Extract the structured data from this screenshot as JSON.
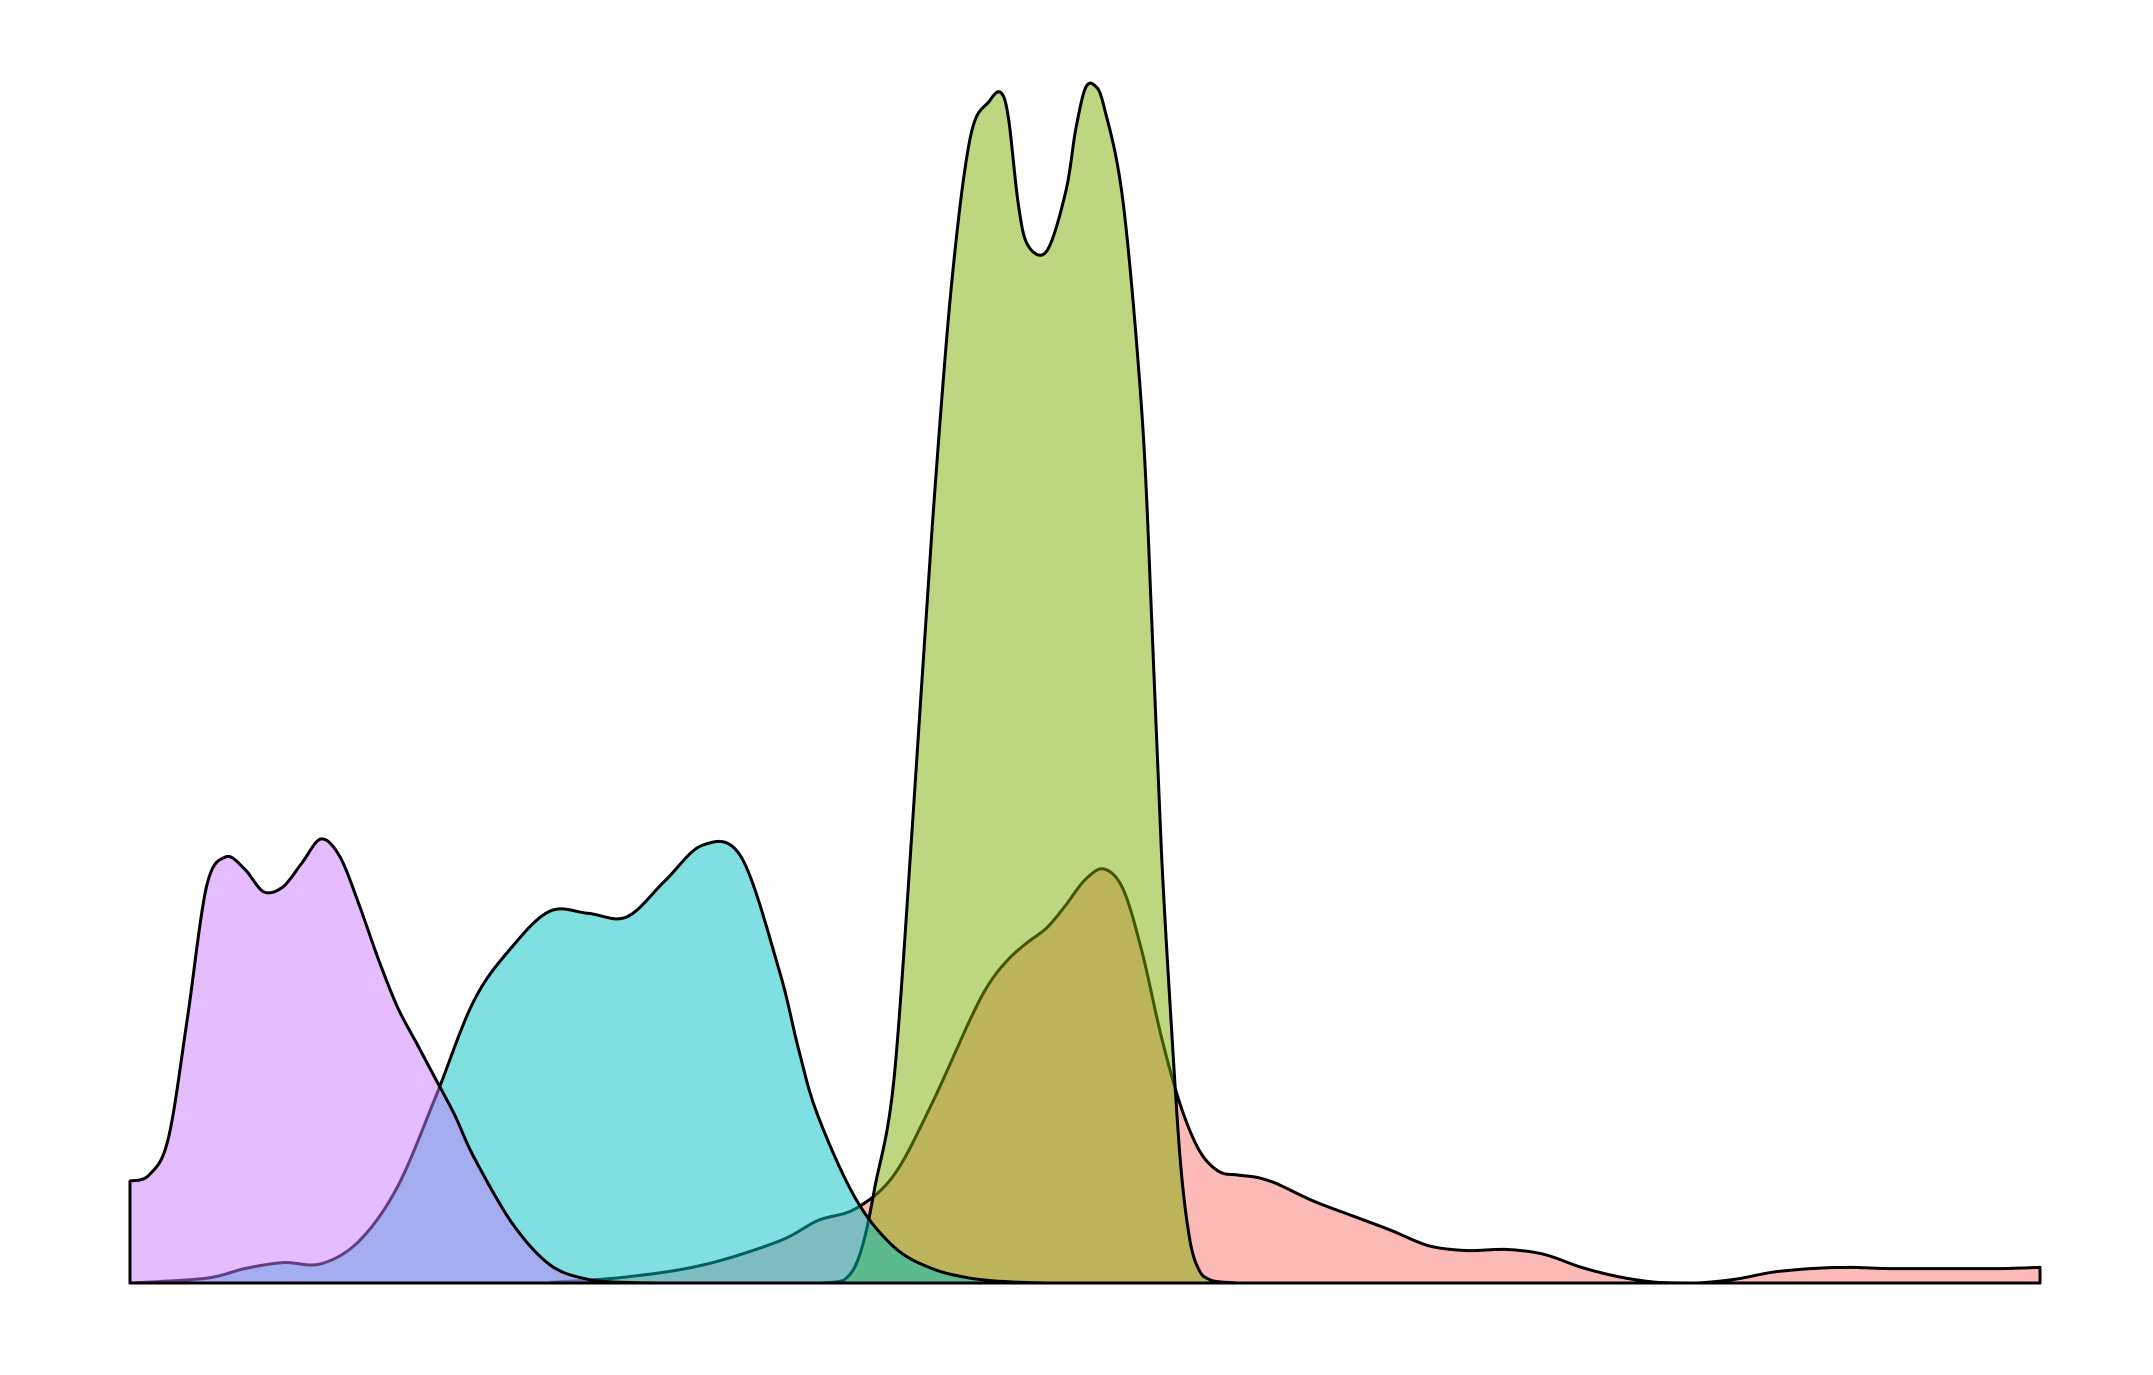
{
  "chart_data": {
    "type": "area",
    "title": "",
    "xlabel": "",
    "ylabel": "",
    "grid": false,
    "legend": "none",
    "axes_visible": false,
    "xlim": [
      0,
      100
    ],
    "ylim": [
      0,
      100
    ],
    "baseline": 0,
    "series": [
      {
        "color": "#f8766d",
        "opacity": 0.5,
        "x": [
          22,
          26,
          30,
          34,
          36,
          38,
          40,
          42,
          44,
          45,
          46,
          47,
          48,
          49,
          50,
          51,
          52,
          53,
          54,
          55,
          56,
          57,
          58,
          59,
          60,
          62,
          64,
          66,
          68,
          70,
          72,
          74,
          76,
          78,
          80,
          82,
          84,
          86,
          88,
          90,
          92,
          94,
          96,
          98,
          100
        ],
        "y": [
          0.05,
          0.5,
          1.5,
          3.5,
          5.2,
          6.2,
          9.0,
          15.0,
          22.0,
          25.0,
          27.0,
          28.4,
          29.6,
          31.5,
          33.6,
          34.5,
          32.8,
          27.5,
          20.5,
          14.8,
          11.0,
          9.3,
          9.0,
          8.8,
          8.3,
          6.8,
          5.6,
          4.4,
          3.1,
          2.7,
          2.8,
          2.4,
          1.3,
          0.5,
          0.05,
          0.0,
          0.3,
          0.9,
          1.2,
          1.3,
          1.2,
          1.2,
          1.2,
          1.2,
          1.3
        ]
      },
      {
        "color": "#7cae00",
        "opacity": 0.5,
        "x": [
          36.0,
          37.0,
          37.5,
          38.0,
          38.5,
          39.0,
          40.0,
          41.0,
          42.0,
          43.0,
          44.0,
          45.0,
          45.6,
          46.0,
          46.5,
          47.0,
          48.0,
          49.0,
          49.5,
          50.0,
          50.5,
          51.0,
          52.0,
          53.0,
          53.5,
          54.0,
          54.5,
          55.0,
          55.5,
          56.0,
          56.5,
          57.0,
          58.0
        ],
        "y": [
          0.0,
          0.1,
          0.4,
          1.5,
          4.0,
          8.0,
          17.0,
          39.0,
          63.0,
          83.0,
          95.5,
          98.5,
          99.2,
          97.0,
          90.0,
          86.5,
          86.0,
          91.0,
          96.0,
          99.5,
          99.8,
          98.0,
          90.0,
          72.0,
          55.0,
          36.0,
          22.0,
          10.0,
          3.5,
          1.0,
          0.3,
          0.1,
          0.0
        ]
      },
      {
        "color": "#00bfc4",
        "opacity": 0.5,
        "x": [
          0,
          4,
          6,
          8,
          10,
          12,
          14,
          16,
          18,
          20,
          22,
          24,
          26,
          28,
          30,
          32,
          34,
          35,
          36,
          38,
          40,
          42,
          44,
          46,
          48,
          50,
          52,
          54
        ],
        "y": [
          0.0,
          0.4,
          1.2,
          1.7,
          1.6,
          3.5,
          8.0,
          15.5,
          23.5,
          28.0,
          31.0,
          30.8,
          30.5,
          33.5,
          36.5,
          35.5,
          26.0,
          19.5,
          14.0,
          7.0,
          3.0,
          1.2,
          0.4,
          0.1,
          0.0,
          0.0,
          0.0,
          0.0
        ]
      },
      {
        "color": "#c77cff",
        "opacity": 0.5,
        "x": [
          0,
          1,
          2,
          3,
          4,
          5,
          6,
          7,
          8,
          9,
          10,
          11,
          12,
          13,
          14,
          15,
          16,
          17,
          18,
          20,
          22,
          24,
          26,
          28,
          30,
          32,
          34,
          36,
          38,
          40
        ],
        "y": [
          8.5,
          9.0,
          12.0,
          22.0,
          33.0,
          35.5,
          34.5,
          32.6,
          33.0,
          35.0,
          37.0,
          35.5,
          31.5,
          27.0,
          23.0,
          20.0,
          17.0,
          14.0,
          10.5,
          5.0,
          1.5,
          0.3,
          0.05,
          0.0,
          0.0,
          0.0,
          0.0,
          0.0,
          0.0,
          0.0
        ]
      }
    ]
  }
}
